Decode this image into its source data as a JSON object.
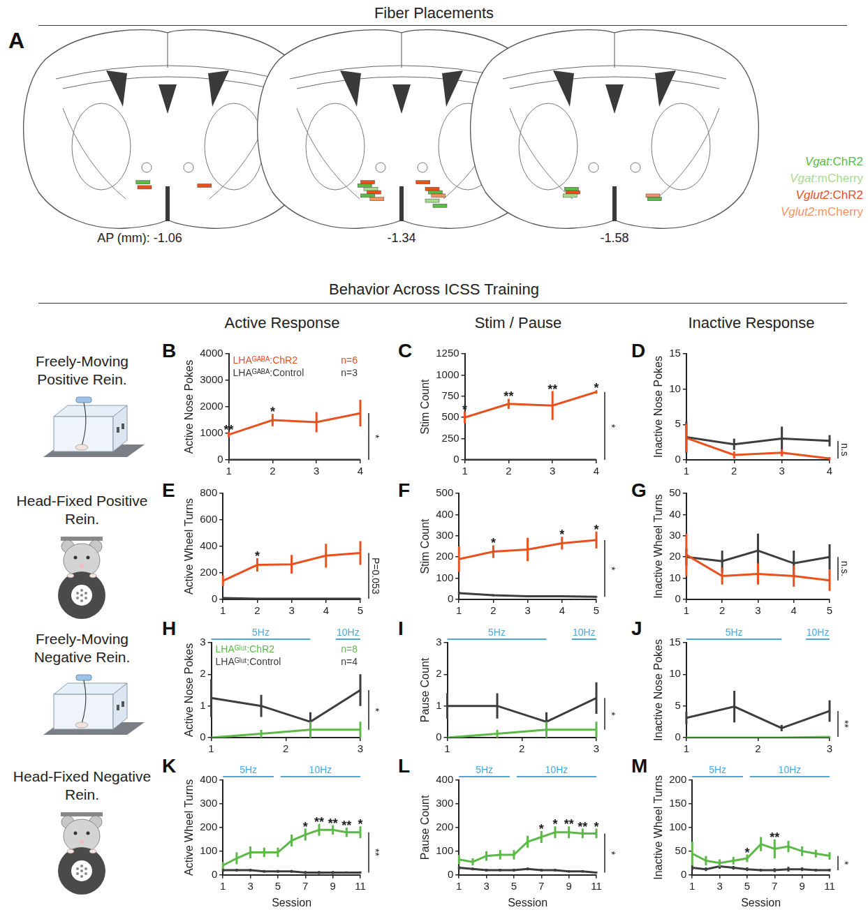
{
  "header": {
    "fiber_title": "Fiber Placements",
    "behavior_title": "Behavior Across ICSS Training"
  },
  "panel_a": {
    "label": "A",
    "ap_labels": [
      "AP (mm): -1.06",
      "-1.34",
      "-1.58"
    ],
    "groups": [
      {
        "name": "Vgat:ChR2",
        "color": "#5cb947"
      },
      {
        "name": "Vgat:mCherry",
        "color": "#a9d98e"
      },
      {
        "name": "Vglut2:ChR2",
        "color": "#e8501e"
      },
      {
        "name": "Vglut2:mCherry",
        "color": "#f0935f"
      }
    ],
    "placements": [
      [
        {
          "group": 0,
          "ml": -0.8,
          "dv": 4.4
        },
        {
          "group": 2,
          "ml": -0.75,
          "dv": 4.55
        },
        {
          "group": 2,
          "ml": 1.2,
          "dv": 4.5
        }
      ],
      [
        {
          "group": 2,
          "ml": -1.1,
          "dv": 4.4
        },
        {
          "group": 0,
          "ml": -1.2,
          "dv": 4.5
        },
        {
          "group": 1,
          "ml": -1.0,
          "dv": 4.6
        },
        {
          "group": 2,
          "ml": -0.9,
          "dv": 4.7
        },
        {
          "group": 0,
          "ml": -1.1,
          "dv": 4.8
        },
        {
          "group": 3,
          "ml": -0.8,
          "dv": 4.9
        },
        {
          "group": 2,
          "ml": 0.7,
          "dv": 4.4
        },
        {
          "group": 2,
          "ml": 1.0,
          "dv": 4.6
        },
        {
          "group": 0,
          "ml": 1.1,
          "dv": 4.7
        },
        {
          "group": 3,
          "ml": 1.2,
          "dv": 4.8
        },
        {
          "group": 1,
          "ml": 1.0,
          "dv": 4.95
        },
        {
          "group": 0,
          "ml": 1.25,
          "dv": 5.1
        }
      ],
      [
        {
          "group": 0,
          "ml": -1.4,
          "dv": 4.6
        },
        {
          "group": 2,
          "ml": -1.35,
          "dv": 4.7
        },
        {
          "group": 1,
          "ml": -1.45,
          "dv": 4.8
        },
        {
          "group": 3,
          "ml": 1.25,
          "dv": 4.8
        },
        {
          "group": 0,
          "ml": 1.3,
          "dv": 4.9
        }
      ]
    ]
  },
  "column_titles": [
    "Active Response",
    "Stim / Pause",
    "Inactive Response"
  ],
  "row_labels": [
    "Freely-Moving Positive Rein.",
    "Head-Fixed Positive Rein.",
    "Freely-Moving Negative Rein.",
    "Head-Fixed Negative Rein."
  ],
  "chart_data": [
    {
      "label": "B",
      "type": "line",
      "y_label": "Active Nose Pokes",
      "grid": false,
      "legend": "top-left",
      "x": [
        1,
        2,
        3,
        4
      ],
      "xlim": [
        1,
        4
      ],
      "xticks": [
        1,
        2,
        3,
        4
      ],
      "ylim": [
        0,
        4000
      ],
      "yticks": [
        0,
        1000,
        2000,
        3000,
        4000
      ],
      "series": [
        {
          "name": "LHAᴳᴬᴮᴬ:ChR2",
          "n_label": "n=6",
          "color": "#e8501e",
          "values": [
            950,
            1500,
            1420,
            1760
          ],
          "errors": [
            100,
            230,
            380,
            500
          ],
          "stars": [
            "**",
            "*",
            null,
            null
          ]
        },
        {
          "name": "LHAᴳᴬᴮᴬ:Control",
          "n_label": "n=3",
          "color": "#3d3d3d",
          "values": [
            0,
            0,
            0,
            0
          ],
          "errors": [
            0,
            0,
            0,
            0
          ]
        }
      ],
      "annotations": [
        "*"
      ]
    },
    {
      "label": "C",
      "type": "line",
      "y_label": "Stim Count",
      "grid": false,
      "x": [
        1,
        2,
        3,
        4
      ],
      "xlim": [
        1,
        4
      ],
      "xticks": [
        1,
        2,
        3,
        4
      ],
      "ylim": [
        0,
        1250
      ],
      "yticks": [
        0,
        250,
        500,
        750,
        1000,
        1250
      ],
      "series": [
        {
          "color": "#e8501e",
          "values": [
            500,
            660,
            640,
            800
          ],
          "errors": [
            70,
            60,
            170,
            20
          ],
          "stars": [
            "*",
            "**",
            "**",
            "*"
          ]
        },
        {
          "color": "#3d3d3d",
          "values": [
            0,
            0,
            0,
            0
          ],
          "errors": [
            0,
            0,
            0,
            0
          ]
        }
      ],
      "annotations": [
        "*"
      ]
    },
    {
      "label": "D",
      "type": "line",
      "y_label": "Inactive Nose Pokes",
      "grid": false,
      "x": [
        1,
        2,
        3,
        4
      ],
      "xlim": [
        1,
        4
      ],
      "xticks": [
        1,
        2,
        3,
        4
      ],
      "ylim": [
        0,
        15
      ],
      "yticks": [
        0,
        5,
        10,
        15
      ],
      "series": [
        {
          "color": "#e8501e",
          "values": [
            3.1,
            0.7,
            1.0,
            0.2
          ],
          "errors": [
            2.0,
            0.5,
            0.5,
            0.2
          ]
        },
        {
          "color": "#3d3d3d",
          "values": [
            3.2,
            2.2,
            3.0,
            2.7
          ],
          "errors": [
            2.2,
            0.8,
            1.7,
            0.8
          ]
        }
      ],
      "annotations": [
        "n.s"
      ]
    },
    {
      "label": "E",
      "type": "line",
      "y_label": "Active Wheel Turns",
      "grid": false,
      "x": [
        1,
        2,
        3,
        4,
        5
      ],
      "xlim": [
        1,
        5
      ],
      "xticks": [
        1,
        2,
        3,
        4,
        5
      ],
      "ylim": [
        0,
        800
      ],
      "yticks": [
        0,
        200,
        400,
        600,
        800
      ],
      "series": [
        {
          "color": "#e8501e",
          "values": [
            140,
            260,
            265,
            330,
            350
          ],
          "errors": [
            40,
            50,
            70,
            90,
            90
          ],
          "stars": [
            null,
            "*",
            null,
            null,
            null
          ]
        },
        {
          "color": "#3d3d3d",
          "values": [
            10,
            5,
            5,
            5,
            5
          ],
          "errors": [
            5,
            3,
            3,
            3,
            3
          ]
        }
      ],
      "annotations": [
        "P=0.053"
      ]
    },
    {
      "label": "F",
      "type": "line",
      "y_label": "Stim Count",
      "grid": false,
      "x": [
        1,
        2,
        3,
        4,
        5
      ],
      "xlim": [
        1,
        5
      ],
      "xticks": [
        1,
        2,
        3,
        4,
        5
      ],
      "ylim": [
        0,
        500
      ],
      "yticks": [
        0,
        100,
        200,
        300,
        400,
        500
      ],
      "series": [
        {
          "color": "#e8501e",
          "values": [
            190,
            225,
            235,
            265,
            280
          ],
          "errors": [
            60,
            30,
            55,
            30,
            40
          ],
          "stars": [
            null,
            "*",
            null,
            "*",
            "*"
          ]
        },
        {
          "color": "#3d3d3d",
          "values": [
            30,
            20,
            15,
            15,
            12
          ],
          "errors": [
            8,
            5,
            4,
            4,
            4
          ]
        }
      ],
      "annotations": [
        "*"
      ]
    },
    {
      "label": "G",
      "type": "line",
      "y_label": "Inactive Wheel Turns",
      "grid": false,
      "x": [
        1,
        2,
        3,
        4,
        5
      ],
      "xlim": [
        1,
        5
      ],
      "xticks": [
        1,
        2,
        3,
        4,
        5
      ],
      "ylim": [
        0,
        50
      ],
      "yticks": [
        0,
        10,
        20,
        30,
        40,
        50
      ],
      "series": [
        {
          "color": "#e8501e",
          "values": [
            21,
            11,
            12,
            11,
            9
          ],
          "errors": [
            10,
            4,
            5,
            5,
            5
          ]
        },
        {
          "color": "#3d3d3d",
          "values": [
            20,
            18,
            23,
            17,
            20
          ],
          "errors": [
            4,
            5,
            8,
            6,
            6
          ]
        }
      ],
      "annotations": [
        "n.s."
      ]
    },
    {
      "label": "H",
      "type": "line",
      "y_label": "Active Nose Pokes",
      "grid": false,
      "legend": "top-left",
      "x": [
        1,
        1.67,
        2.33,
        3
      ],
      "xlim": [
        1,
        3
      ],
      "xticks": [
        1,
        2,
        3
      ],
      "ylim": [
        0,
        3
      ],
      "yticks": [
        0,
        1,
        2,
        3
      ],
      "stim_periods": [
        {
          "label": "5Hz",
          "from": 1,
          "to": 2.33,
          "color": "#4aa8de"
        },
        {
          "label": "10Hz",
          "from": 2.67,
          "to": 3,
          "color": "#4aa8de"
        }
      ],
      "series": [
        {
          "name": "LHAᴳˡᵘᵗ:ChR2",
          "n_label": "n=8",
          "color": "#5cb947",
          "values": [
            0,
            0.12,
            0.25,
            0.25
          ],
          "errors": [
            0,
            0.12,
            0.25,
            0.25
          ]
        },
        {
          "name": "LHAᴳˡᵘᵗ:Control",
          "n_label": "n=4",
          "color": "#3d3d3d",
          "values": [
            1.25,
            1.0,
            0.5,
            1.5
          ],
          "errors": [
            0.6,
            0.35,
            0.3,
            0.5
          ]
        }
      ],
      "annotations": [
        "*"
      ]
    },
    {
      "label": "I",
      "type": "line",
      "y_label": "Pause Count",
      "grid": false,
      "x": [
        1,
        1.67,
        2.33,
        3
      ],
      "xlim": [
        1,
        3
      ],
      "xticks": [
        1,
        2,
        3
      ],
      "ylim": [
        0,
        3
      ],
      "yticks": [
        0,
        1,
        2,
        3
      ],
      "stim_periods": [
        {
          "label": "5Hz",
          "from": 1,
          "to": 2.33,
          "color": "#4aa8de"
        },
        {
          "label": "10Hz",
          "from": 2.67,
          "to": 3,
          "color": "#4aa8de"
        }
      ],
      "series": [
        {
          "color": "#5cb947",
          "values": [
            0,
            0.12,
            0.25,
            0.25
          ],
          "errors": [
            0,
            0.12,
            0.25,
            0.25
          ]
        },
        {
          "color": "#3d3d3d",
          "values": [
            1.0,
            1.0,
            0.5,
            1.25
          ],
          "errors": [
            0.4,
            0.4,
            0.3,
            0.5
          ]
        }
      ],
      "annotations": [
        "*"
      ]
    },
    {
      "label": "J",
      "type": "line",
      "y_label": "Inactive Nose Pokes",
      "grid": false,
      "x": [
        1,
        1.67,
        2.33,
        3
      ],
      "xlim": [
        1,
        3
      ],
      "xticks": [
        1,
        2,
        3
      ],
      "ylim": [
        0,
        15
      ],
      "yticks": [
        0,
        5,
        10,
        15
      ],
      "stim_periods": [
        {
          "label": "5Hz",
          "from": 1,
          "to": 2.33,
          "color": "#4aa8de"
        },
        {
          "label": "10Hz",
          "from": 2.67,
          "to": 3,
          "color": "#4aa8de"
        }
      ],
      "series": [
        {
          "color": "#5cb947",
          "values": [
            0,
            0,
            0,
            0.1
          ],
          "errors": [
            0,
            0,
            0,
            0.1
          ]
        },
        {
          "color": "#3d3d3d",
          "values": [
            3.1,
            4.9,
            1.5,
            4.2
          ],
          "errors": [
            1.0,
            2.5,
            0.5,
            1.7
          ]
        }
      ],
      "annotations": [
        "**"
      ]
    },
    {
      "label": "K",
      "type": "line",
      "y_label": "Active Wheel Turns",
      "x_label": "Session",
      "grid": false,
      "x": [
        1,
        2,
        3,
        4,
        5,
        6,
        7,
        8,
        9,
        10,
        11
      ],
      "xlim": [
        1,
        11
      ],
      "xticks": [
        1,
        3,
        5,
        7,
        9,
        11
      ],
      "ylim": [
        0,
        400
      ],
      "yticks": [
        0,
        100,
        200,
        300,
        400
      ],
      "stim_periods": [
        {
          "label": "5Hz",
          "from": 1,
          "to": 4.7,
          "color": "#4aa8de"
        },
        {
          "label": "10Hz",
          "from": 5.2,
          "to": 11,
          "color": "#4aa8de"
        }
      ],
      "series": [
        {
          "color": "#5cb947",
          "values": [
            40,
            70,
            95,
            95,
            95,
            145,
            170,
            190,
            190,
            180,
            180
          ],
          "errors": [
            15,
            25,
            25,
            20,
            20,
            25,
            25,
            25,
            20,
            20,
            25
          ],
          "stars": [
            null,
            null,
            null,
            null,
            null,
            null,
            "*",
            "**",
            "**",
            "**",
            "*"
          ]
        },
        {
          "color": "#3d3d3d",
          "values": [
            20,
            20,
            20,
            15,
            15,
            15,
            10,
            10,
            10,
            10,
            10
          ],
          "errors": [
            8,
            6,
            6,
            6,
            6,
            6,
            6,
            6,
            6,
            5,
            5
          ]
        }
      ],
      "annotations": [
        "**"
      ]
    },
    {
      "label": "L",
      "type": "line",
      "y_label": "Pause Count",
      "x_label": "Session",
      "grid": false,
      "x": [
        1,
        2,
        3,
        4,
        5,
        6,
        7,
        8,
        9,
        10,
        11
      ],
      "xlim": [
        1,
        11
      ],
      "xticks": [
        1,
        3,
        5,
        7,
        9,
        11
      ],
      "ylim": [
        0,
        400
      ],
      "yticks": [
        0,
        100,
        200,
        300,
        400
      ],
      "stim_periods": [
        {
          "label": "5Hz",
          "from": 1,
          "to": 4.7,
          "color": "#4aa8de"
        },
        {
          "label": "10Hz",
          "from": 5.2,
          "to": 11,
          "color": "#4aa8de"
        }
      ],
      "series": [
        {
          "color": "#5cb947",
          "values": [
            65,
            55,
            80,
            85,
            85,
            140,
            160,
            180,
            180,
            175,
            175
          ],
          "errors": [
            20,
            15,
            20,
            20,
            20,
            25,
            25,
            25,
            25,
            20,
            20
          ],
          "stars": [
            null,
            null,
            null,
            null,
            null,
            null,
            "*",
            "*",
            "**",
            "**",
            "*"
          ]
        },
        {
          "color": "#3d3d3d",
          "values": [
            30,
            25,
            20,
            20,
            20,
            25,
            20,
            20,
            15,
            15,
            10
          ],
          "errors": [
            8,
            6,
            6,
            6,
            6,
            6,
            6,
            6,
            5,
            5,
            4
          ]
        }
      ],
      "annotations": [
        "*"
      ]
    },
    {
      "label": "M",
      "type": "line",
      "y_label": "Inactive Wheel Turns",
      "x_label": "Session",
      "grid": false,
      "x": [
        1,
        2,
        3,
        4,
        5,
        6,
        7,
        8,
        9,
        10,
        11
      ],
      "xlim": [
        1,
        11
      ],
      "xticks": [
        1,
        3,
        5,
        7,
        9,
        11
      ],
      "ylim": [
        0,
        200
      ],
      "yticks": [
        0,
        50,
        100,
        150,
        200
      ],
      "stim_periods": [
        {
          "label": "5Hz",
          "from": 1,
          "to": 4.7,
          "color": "#4aa8de"
        },
        {
          "label": "10Hz",
          "from": 5.2,
          "to": 11,
          "color": "#4aa8de"
        }
      ],
      "series": [
        {
          "color": "#5cb947",
          "values": [
            45,
            30,
            25,
            30,
            35,
            65,
            55,
            60,
            50,
            45,
            40
          ],
          "errors": [
            25,
            10,
            8,
            8,
            8,
            15,
            20,
            12,
            10,
            8,
            8
          ],
          "stars": [
            null,
            null,
            null,
            null,
            "*",
            null,
            "**",
            null,
            null,
            null,
            null
          ]
        },
        {
          "color": "#3d3d3d",
          "values": [
            15,
            12,
            18,
            15,
            12,
            10,
            10,
            12,
            12,
            10,
            10
          ],
          "errors": [
            5,
            4,
            5,
            4,
            4,
            3,
            4,
            5,
            4,
            3,
            3
          ]
        }
      ],
      "annotations": [
        "*"
      ]
    }
  ]
}
